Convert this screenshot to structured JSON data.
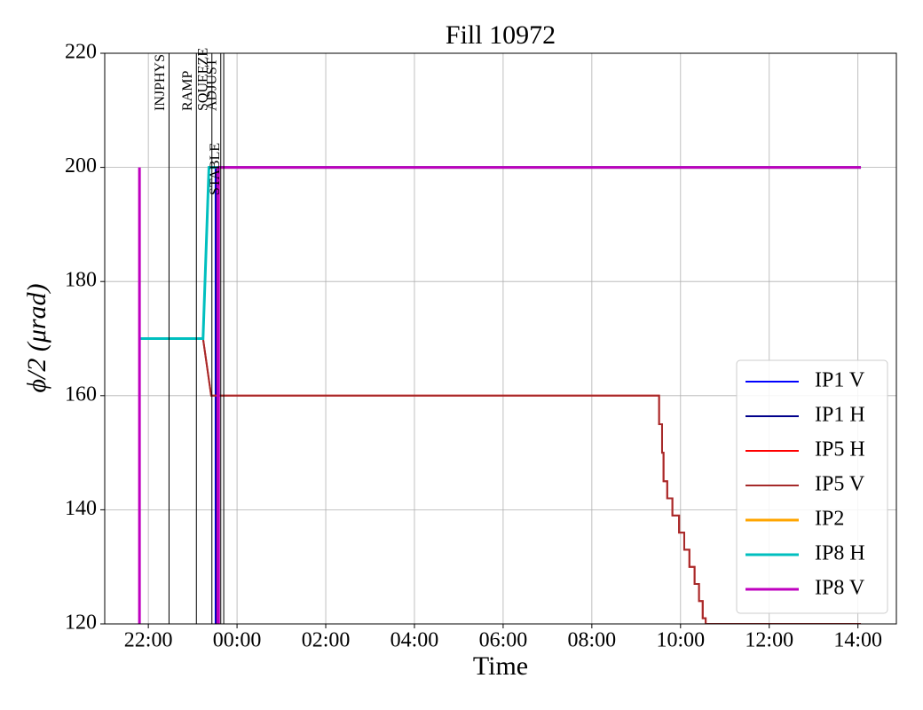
{
  "chart_data": {
    "type": "line",
    "title": "Fill 10972",
    "xlabel": "Time",
    "ylabel": "ϕ/2 (μrad)",
    "xlim": [
      "21:01",
      "14:52"
    ],
    "xticks": [
      "22:00",
      "00:00",
      "02:00",
      "04:00",
      "06:00",
      "08:00",
      "10:00",
      "12:00",
      "14:00"
    ],
    "ylim": [
      120,
      220
    ],
    "yticks": [
      120,
      140,
      160,
      180,
      200,
      220
    ],
    "grid": true,
    "legend": "lower right",
    "annotations": [
      {
        "label": "INJPHYS",
        "x": "22:28"
      },
      {
        "label": "RAMP",
        "x": "23:05"
      },
      {
        "label": "SQUEEZE",
        "x": "23:26"
      },
      {
        "label": "ADJUST",
        "x": "23:38"
      },
      {
        "label": "STABLE",
        "x": "23:42"
      }
    ],
    "series": [
      {
        "name": "IP1 V",
        "color": "#0000ff",
        "linewidth": 2,
        "x": [
          "23:31",
          "23:31",
          "14:04"
        ],
        "values": [
          120,
          200,
          200
        ]
      },
      {
        "name": "IP1 H",
        "color": "#00008b",
        "linewidth": 2,
        "x": [
          "23:32",
          "23:32",
          "14:04"
        ],
        "values": [
          120,
          200,
          200
        ]
      },
      {
        "name": "IP5 H",
        "color": "#ff0000",
        "linewidth": 2,
        "x": [
          "21:48",
          "23:14",
          "23:25",
          "09:31",
          "09:31",
          "09:35",
          "09:35",
          "09:37",
          "09:37",
          "09:42",
          "09:42",
          "09:49",
          "09:49",
          "09:58",
          "09:58",
          "10:05",
          "10:05",
          "10:12",
          "10:12",
          "10:19",
          "10:19",
          "10:25",
          "10:25",
          "10:30",
          "10:30",
          "10:34",
          "10:34",
          "14:04"
        ],
        "values": [
          170,
          170,
          160,
          160,
          155,
          155,
          150,
          150,
          145,
          145,
          142,
          142,
          139,
          139,
          136,
          136,
          133,
          133,
          130,
          130,
          127,
          127,
          124,
          124,
          121,
          121,
          120,
          120
        ]
      },
      {
        "name": "IP5 V",
        "color": "#a52a2a",
        "linewidth": 2,
        "x": [
          "21:48",
          "23:14",
          "23:25",
          "09:31",
          "09:31",
          "09:35",
          "09:35",
          "09:37",
          "09:37",
          "09:42",
          "09:42",
          "09:49",
          "09:49",
          "09:58",
          "09:58",
          "10:05",
          "10:05",
          "10:12",
          "10:12",
          "10:19",
          "10:19",
          "10:25",
          "10:25",
          "10:30",
          "10:30",
          "10:34",
          "10:34",
          "14:04"
        ],
        "values": [
          170,
          170,
          160,
          160,
          155,
          155,
          150,
          150,
          145,
          145,
          142,
          142,
          139,
          139,
          136,
          136,
          133,
          133,
          130,
          130,
          127,
          127,
          124,
          124,
          121,
          121,
          120,
          120
        ]
      },
      {
        "name": "IP2",
        "color": "#ffa500",
        "linewidth": 3,
        "x": [
          "23:34",
          "14:04"
        ],
        "values": [
          200,
          200
        ]
      },
      {
        "name": "IP8 H",
        "color": "#00bfbf",
        "linewidth": 3,
        "x": [
          "21:48",
          "23:14",
          "23:22",
          "14:04"
        ],
        "values": [
          170,
          170,
          200,
          200
        ]
      },
      {
        "name": "IP8 V",
        "color": "#bf00bf",
        "linewidth": 3,
        "x": [
          "21:48",
          "21:48",
          "21:48",
          null,
          "23:34",
          "23:34",
          "23:35",
          "23:35",
          "14:04"
        ],
        "values": [
          120,
          200,
          120,
          null,
          120,
          200,
          120,
          200,
          200
        ]
      }
    ]
  }
}
